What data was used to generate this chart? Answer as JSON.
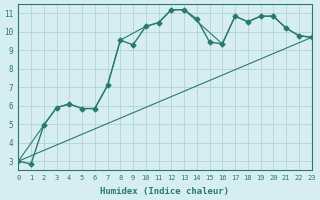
{
  "xlabel": "Humidex (Indice chaleur)",
  "ylabel": "",
  "background_color": "#d6eef0",
  "grid_color": "#b0d4d8",
  "line_color": "#2a7a6a",
  "xlim": [
    0,
    23
  ],
  "ylim": [
    2.5,
    11.5
  ],
  "xticks": [
    0,
    1,
    2,
    3,
    4,
    5,
    6,
    7,
    8,
    9,
    10,
    11,
    12,
    13,
    14,
    15,
    16,
    17,
    18,
    19,
    20,
    21,
    22,
    23
  ],
  "yticks": [
    3,
    4,
    5,
    6,
    7,
    8,
    9,
    10,
    11
  ],
  "series": [
    {
      "x": [
        0,
        1,
        2,
        3,
        4,
        5,
        6,
        7,
        8,
        9,
        10,
        11,
        12,
        13,
        14,
        15,
        16,
        17,
        18,
        19,
        20,
        21,
        22,
        23
      ],
      "y": [
        3,
        2.85,
        4.95,
        5.9,
        6.1,
        5.85,
        5.85,
        7.1,
        9.55,
        9.3,
        10.3,
        10.5,
        11.2,
        11.2,
        10.7,
        9.45,
        9.35,
        10.85,
        10.55,
        10.85,
        10.85,
        10.2,
        9.8,
        9.7
      ],
      "has_marker": true,
      "marker": "D",
      "markersize": 2.5,
      "linewidth": 1.0
    },
    {
      "x": [
        0,
        2,
        3,
        4,
        5,
        6,
        7,
        8,
        10,
        11,
        12,
        13,
        16,
        17,
        18,
        19,
        20,
        21,
        22,
        23
      ],
      "y": [
        3,
        4.95,
        5.9,
        6.1,
        5.85,
        5.85,
        7.1,
        9.55,
        10.3,
        10.5,
        11.2,
        11.2,
        9.35,
        10.85,
        10.55,
        10.85,
        10.85,
        10.2,
        9.8,
        9.7
      ],
      "has_marker": false,
      "marker": "",
      "markersize": 0,
      "linewidth": 0.8
    },
    {
      "x": [
        0,
        23
      ],
      "y": [
        3,
        9.7
      ],
      "has_marker": false,
      "marker": "",
      "markersize": 0,
      "linewidth": 0.8
    }
  ]
}
